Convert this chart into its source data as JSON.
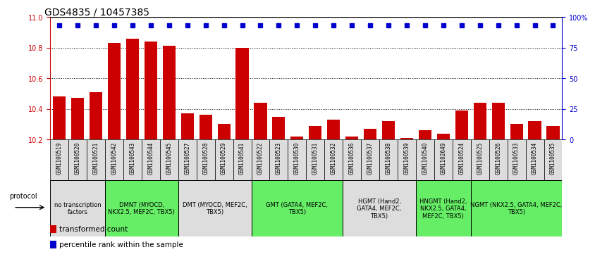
{
  "title": "GDS4835 / 10457385",
  "samples": [
    "GSM1100519",
    "GSM1100520",
    "GSM1100521",
    "GSM1100542",
    "GSM1100543",
    "GSM1100544",
    "GSM1100545",
    "GSM1100527",
    "GSM1100528",
    "GSM1100529",
    "GSM1100541",
    "GSM1100522",
    "GSM1100523",
    "GSM1100530",
    "GSM1100531",
    "GSM1100532",
    "GSM1100536",
    "GSM1100537",
    "GSM1100538",
    "GSM1100539",
    "GSM1100540",
    "GSM1102649",
    "GSM1100524",
    "GSM1100525",
    "GSM1100526",
    "GSM1100533",
    "GSM1100534",
    "GSM1100535"
  ],
  "bar_values": [
    10.48,
    10.47,
    10.51,
    10.83,
    10.86,
    10.84,
    10.81,
    10.37,
    10.36,
    10.3,
    10.8,
    10.44,
    10.35,
    10.22,
    10.29,
    10.33,
    10.22,
    10.27,
    10.32,
    10.21,
    10.26,
    10.24,
    10.39,
    10.44,
    10.44,
    10.3,
    10.32,
    10.29
  ],
  "dot_values": [
    93,
    93,
    93,
    93,
    93,
    93,
    93,
    93,
    93,
    93,
    93,
    93,
    93,
    93,
    93,
    93,
    93,
    93,
    93,
    93,
    93,
    93,
    93,
    93,
    93,
    93,
    93,
    93
  ],
  "ylim_left": [
    10.2,
    11.0
  ],
  "ylim_right": [
    0,
    100
  ],
  "yticks_left": [
    10.2,
    10.4,
    10.6,
    10.8,
    11.0
  ],
  "yticks_right": [
    0,
    25,
    50,
    75,
    100
  ],
  "ytick_labels_right": [
    "0",
    "25",
    "50",
    "75",
    "100%"
  ],
  "bar_color": "#cc0000",
  "dot_color": "#0000cc",
  "protocol_groups": [
    {
      "label": "no transcription\nfactors",
      "start": 0,
      "end": 3,
      "color": "#dddddd"
    },
    {
      "label": "DMNT (MYOCD,\nNKX2.5, MEF2C, TBX5)",
      "start": 3,
      "end": 7,
      "color": "#66ee66"
    },
    {
      "label": "DMT (MYOCD, MEF2C,\nTBX5)",
      "start": 7,
      "end": 11,
      "color": "#dddddd"
    },
    {
      "label": "GMT (GATA4, MEF2C,\nTBX5)",
      "start": 11,
      "end": 16,
      "color": "#66ee66"
    },
    {
      "label": "HGMT (Hand2,\nGATA4, MEF2C,\nTBX5)",
      "start": 16,
      "end": 20,
      "color": "#dddddd"
    },
    {
      "label": "HNGMT (Hand2,\nNKX2.5, GATA4,\nMEF2C, TBX5)",
      "start": 20,
      "end": 23,
      "color": "#66ee66"
    },
    {
      "label": "NGMT (NKX2.5, GATA4, MEF2C,\nTBX5)",
      "start": 23,
      "end": 28,
      "color": "#66ee66"
    }
  ],
  "left_axis_color": "#cc0000",
  "right_axis_color": "#0000cc",
  "title_fontsize": 10,
  "tick_fontsize": 7,
  "sample_fontsize": 5.5,
  "legend_fontsize": 7.5,
  "protocol_fontsize": 6
}
